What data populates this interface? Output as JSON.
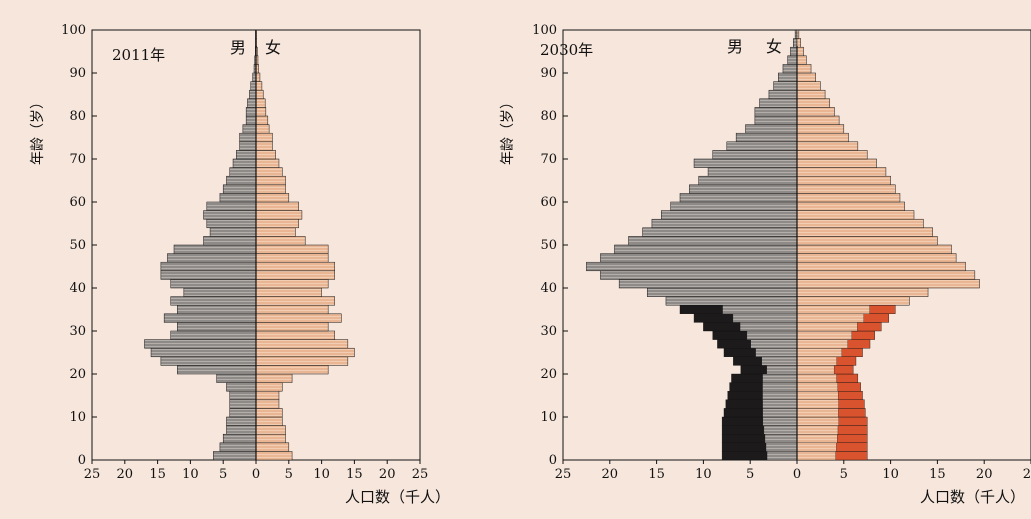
{
  "colors": {
    "background": "#f6e6dc",
    "male_fill": "#8e8a88",
    "male_stripe": "#bdb7b3",
    "male_dark": "#1c1a1a",
    "male_mid": "#4a4646",
    "female_fill": "#e9b592",
    "female_stripe": "#f4d3bd",
    "female_dark": "#d9532e",
    "female_mid": "#e58a62",
    "outline": "#111111"
  },
  "chart_data": [
    {
      "type": "bar",
      "orientation": "horizontal-population-pyramid",
      "year_label": "2011年",
      "left_label": "男",
      "right_label": "女",
      "ylabel": "年龄（岁）",
      "xlabel": "人口数（千人）",
      "xlim": [
        -25,
        25
      ],
      "ylim": [
        0,
        100
      ],
      "x_ticks": [
        "25",
        "20",
        "15",
        "10",
        "5",
        "0",
        "5",
        "10",
        "15",
        "20",
        "25"
      ],
      "y_ticks": [
        "0",
        "10",
        "20",
        "30",
        "40",
        "50",
        "60",
        "70",
        "80",
        "90",
        "100"
      ],
      "age_groups": [
        0,
        2,
        4,
        6,
        8,
        10,
        12,
        14,
        16,
        18,
        20,
        22,
        24,
        26,
        28,
        30,
        32,
        34,
        36,
        38,
        40,
        42,
        44,
        46,
        48,
        50,
        52,
        54,
        56,
        58,
        60,
        62,
        64,
        66,
        68,
        70,
        72,
        74,
        76,
        78,
        80,
        82,
        84,
        86,
        88,
        90,
        92,
        94,
        96,
        98
      ],
      "series": [
        {
          "name": "男",
          "values": [
            6.5,
            5.5,
            5,
            4.5,
            4.5,
            4,
            4,
            4,
            4.5,
            6,
            12,
            14.5,
            16,
            17,
            13,
            12,
            14,
            12,
            13,
            11,
            13,
            14.5,
            14.5,
            13.5,
            12.5,
            8,
            7,
            7.5,
            8,
            7.5,
            5.5,
            5,
            4.5,
            4,
            3.5,
            3,
            2.5,
            2.5,
            2,
            1.5,
            1.5,
            1.3,
            1,
            0.8,
            0.5,
            0.3,
            0.2,
            0.1,
            0.1,
            0.1
          ]
        },
        {
          "name": "女",
          "values": [
            5.5,
            5,
            4.5,
            4.5,
            4,
            4,
            3.5,
            3.5,
            4,
            5.5,
            11,
            14,
            15,
            14,
            12,
            11,
            13,
            11,
            12,
            10,
            11,
            12,
            12,
            11,
            11,
            7.5,
            6,
            6.5,
            7,
            6.5,
            5,
            4.5,
            4.5,
            4,
            3.5,
            3,
            2.5,
            2.5,
            2,
            1.8,
            1.5,
            1.4,
            1.1,
            0.9,
            0.6,
            0.4,
            0.3,
            0.2,
            0.1,
            0.1
          ]
        }
      ]
    },
    {
      "type": "bar",
      "orientation": "horizontal-population-pyramid",
      "year_label": "2030年",
      "left_label": "男",
      "right_label": "女",
      "ylabel": "年龄（岁）",
      "xlabel": "人口数（千人）",
      "xlim": [
        -25,
        25
      ],
      "ylim": [
        0,
        100
      ],
      "x_ticks": [
        "25",
        "20",
        "15",
        "10",
        "5",
        "0",
        "5",
        "10",
        "15",
        "20",
        "25"
      ],
      "y_ticks": [
        "0",
        "10",
        "20",
        "30",
        "40",
        "50",
        "60",
        "70",
        "80",
        "90",
        "100"
      ],
      "age_groups": [
        0,
        2,
        4,
        6,
        8,
        10,
        12,
        14,
        16,
        18,
        20,
        22,
        24,
        26,
        28,
        30,
        32,
        34,
        36,
        38,
        40,
        42,
        44,
        46,
        48,
        50,
        52,
        54,
        56,
        58,
        60,
        62,
        64,
        66,
        68,
        70,
        72,
        74,
        76,
        78,
        80,
        82,
        84,
        86,
        88,
        90,
        92,
        94,
        96,
        98
      ],
      "series": [
        {
          "name": "男",
          "values": [
            8,
            8,
            8,
            8,
            8,
            7.8,
            7.6,
            7.4,
            7.2,
            7,
            6,
            6.8,
            7.8,
            8.5,
            9,
            10,
            11,
            12.5,
            14,
            16,
            19,
            21,
            22.5,
            21,
            19.5,
            18,
            16.5,
            15.5,
            14.5,
            13.5,
            12.5,
            11.5,
            10.5,
            9.5,
            11,
            9,
            7.5,
            6.5,
            5.5,
            4.5,
            4.5,
            4,
            3,
            2.5,
            2,
            1.5,
            1,
            0.7,
            0.4,
            0.2
          ]
        },
        {
          "name": "女",
          "values": [
            7.5,
            7.5,
            7.5,
            7.5,
            7.5,
            7.3,
            7.2,
            7,
            6.8,
            6.5,
            6,
            6.3,
            7,
            7.8,
            8.3,
            9,
            9.8,
            10.5,
            12,
            14,
            19.5,
            19,
            18,
            17,
            16.5,
            15,
            14.5,
            13.5,
            12.5,
            11.5,
            11,
            10.5,
            10,
            9.5,
            8.5,
            7.5,
            6.5,
            5.5,
            5,
            4.5,
            4,
            3.5,
            3,
            2.5,
            2,
            1.5,
            1,
            0.7,
            0.4,
            0.2
          ]
        }
      ]
    }
  ]
}
